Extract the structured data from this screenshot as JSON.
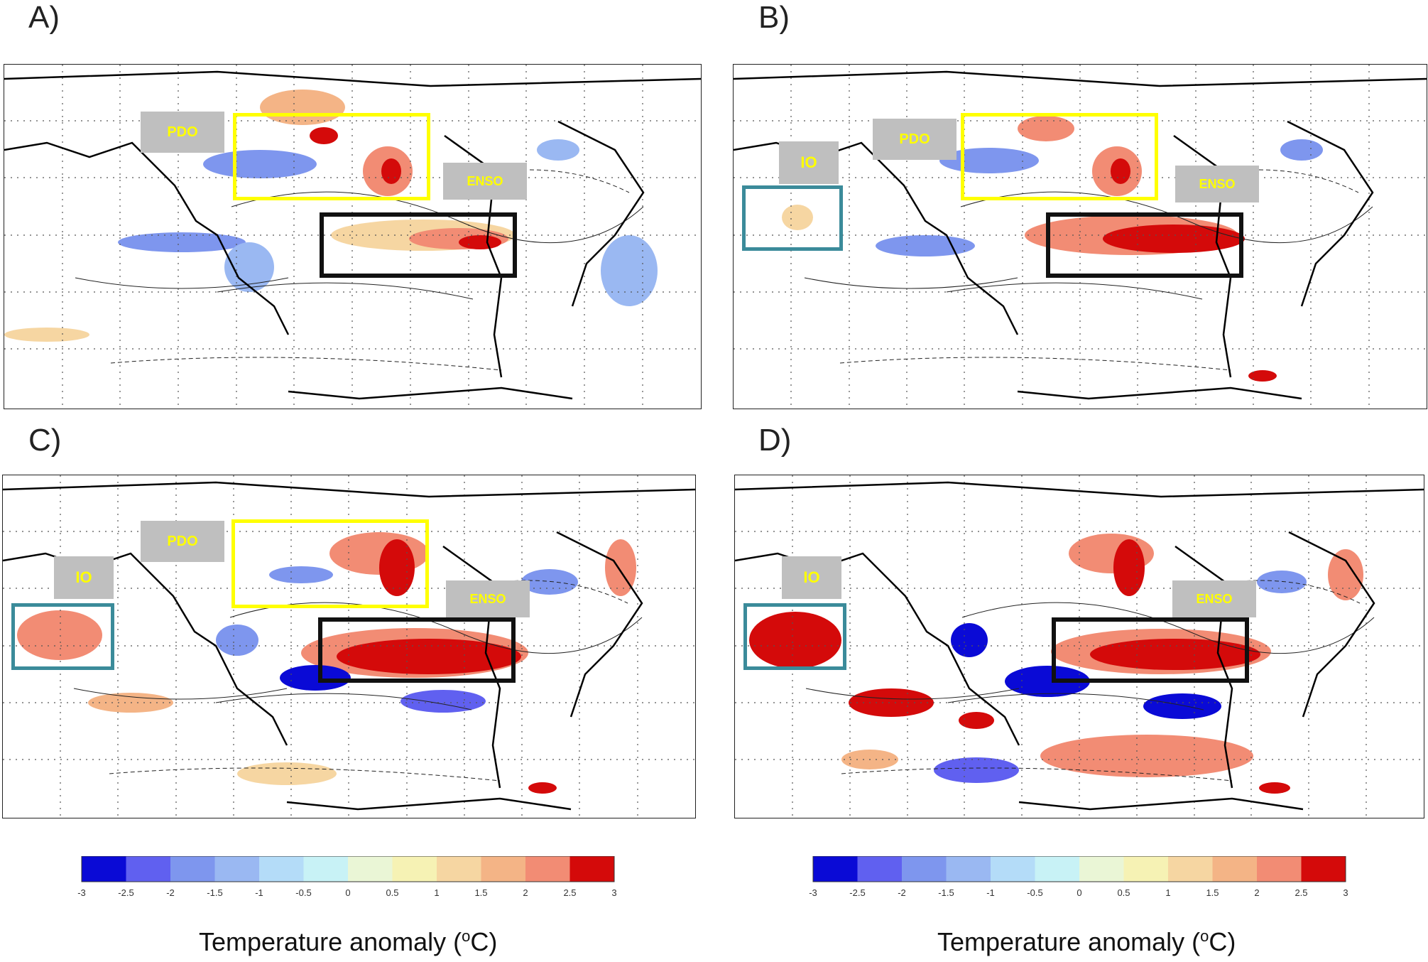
{
  "panels": [
    {
      "id": "A",
      "label": "A)",
      "tags": {
        "pdo": "PDO",
        "enso": "ENSO"
      }
    },
    {
      "id": "B",
      "label": "B)",
      "tags": {
        "pdo": "PDO",
        "enso": "ENSO",
        "io": "IO"
      }
    },
    {
      "id": "C",
      "label": "C)",
      "tags": {
        "pdo": "PDO",
        "enso": "ENSO",
        "io": "IO"
      }
    },
    {
      "id": "D",
      "label": "D)",
      "tags": {
        "enso": "ENSO",
        "io": "IO"
      }
    }
  ],
  "colorbar": {
    "title_prefix": "Temperature anomaly (",
    "title_sup": "o",
    "title_suffix": "C)",
    "ticks": [
      "-3",
      "-2.5",
      "-2",
      "-1.5",
      "-1",
      "-0.5",
      "0",
      "0.5",
      "1",
      "1.5",
      "2",
      "2.5",
      "3"
    ],
    "colors": [
      "#0a0ad6",
      "#6060f0",
      "#7e96ee",
      "#9ab8f2",
      "#b4dcf8",
      "#c8f2f6",
      "#eaf6d6",
      "#f6f2b4",
      "#f6d6a2",
      "#f4b486",
      "#f28c74",
      "#d40a0a"
    ]
  },
  "colors": {
    "pdo_box": "#ffff00",
    "enso_box": "#111111",
    "io_box": "#3b8b9a",
    "tag_bg": "#bfbfbf",
    "tag_text": "#ffff00"
  }
}
